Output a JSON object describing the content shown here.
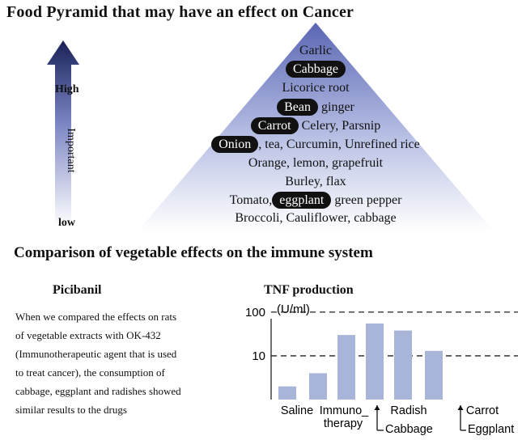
{
  "title": "Food Pyramid that may have an effect on Cancer",
  "arrow": {
    "high_label": "High",
    "important_label": "Important",
    "low_label": "low"
  },
  "pyramid": {
    "rows": [
      {
        "segments": [
          {
            "text": "Garlic",
            "pill": false
          }
        ]
      },
      {
        "segments": [
          {
            "text": "Cabbage",
            "pill": true
          }
        ]
      },
      {
        "segments": [
          {
            "text": "Licorice root",
            "pill": false
          }
        ]
      },
      {
        "segments": [
          {
            "text": "Bean",
            "pill": true
          },
          {
            "text": " ginger",
            "pill": false
          }
        ]
      },
      {
        "segments": [
          {
            "text": "Carrot",
            "pill": true
          },
          {
            "text": " Celery, Parsnip",
            "pill": false
          }
        ]
      },
      {
        "segments": [
          {
            "text": "Onion",
            "pill": true
          },
          {
            "text": ", tea, Curcumin, Unrefined rice",
            "pill": false
          }
        ]
      },
      {
        "segments": [
          {
            "text": "Orange, lemon, grapefruit",
            "pill": false
          }
        ]
      },
      {
        "segments": [
          {
            "text": "Burley, flax",
            "pill": false
          }
        ]
      },
      {
        "segments": [
          {
            "text": "Tomato,",
            "pill": false
          },
          {
            "text": "eggplant",
            "pill": true
          },
          {
            "text": " green pepper",
            "pill": false
          }
        ]
      },
      {
        "segments": [
          {
            "text": "Broccoli, Cauliflower, cabbage",
            "pill": false
          }
        ]
      }
    ]
  },
  "section2": {
    "title": "Comparison of vegetable effects on the immune system",
    "picibanil_title": "Picibanil",
    "picibanil_lines": [
      "When we compared the effects on rats",
      "of vegetable extracts with OK-432",
      "(Immunotherapeutic agent that is used",
      "to treat cancer), the consumption of",
      "cabbage, eggplant and radishes showed",
      "similar results to the drugs"
    ]
  },
  "chart_data": {
    "type": "bar",
    "title": "TNF production",
    "ylabel": "(U/ml)",
    "y_scale": "log",
    "ylim": [
      1,
      140
    ],
    "y_ticks": [
      "100",
      "10"
    ],
    "categories": [
      "Saline",
      "Immunotherapy",
      "Cabbage",
      "Radish",
      "Eggplant",
      "Carrot"
    ],
    "values": [
      2,
      4,
      30,
      55,
      38,
      13
    ],
    "x_labels": [
      {
        "text": "Saline"
      },
      {
        "text": "Immuno_"
      },
      {
        "text": "therapy"
      },
      {
        "text": "Radish"
      },
      {
        "text": "Carrot"
      },
      {
        "text": "Cabbage"
      },
      {
        "text": "Eggplant"
      }
    ],
    "bar_color": "#a9b5d8",
    "grid_dashed": true
  }
}
